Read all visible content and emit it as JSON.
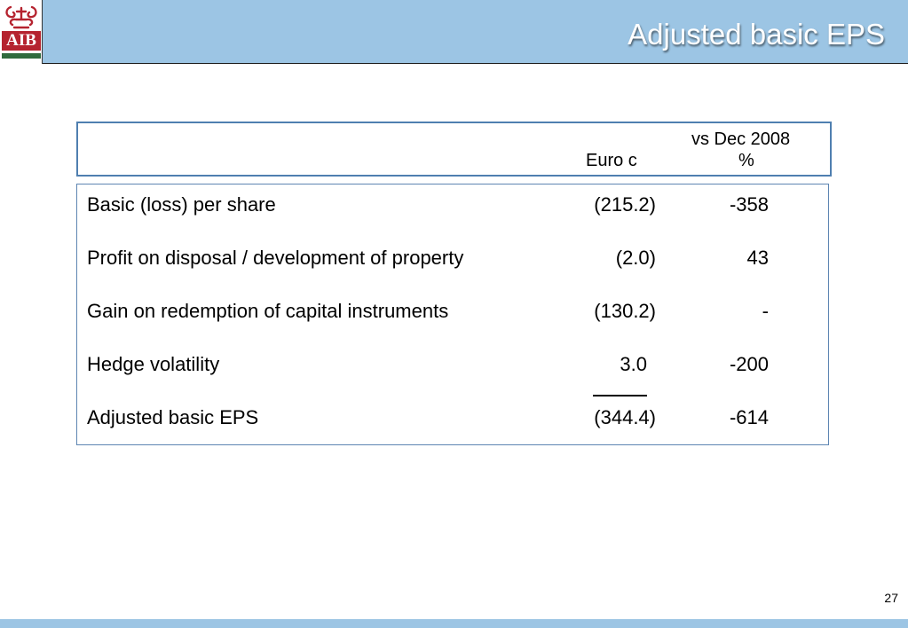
{
  "header": {
    "logo_text": "AIB",
    "title": "Adjusted basic EPS"
  },
  "column_headers": {
    "compare": "vs Dec 2008",
    "euro": "Euro c",
    "percent": "%"
  },
  "rows": [
    {
      "label": "Basic (loss) per share",
      "euro": "(215.2)",
      "pct": "-358"
    },
    {
      "label": "Profit on disposal / development of property",
      "euro": "(2.0)",
      "pct": "43"
    },
    {
      "label": "Gain on redemption of capital instruments",
      "euro": "(130.2)",
      "pct": "-"
    },
    {
      "label": "Hedge volatility",
      "euro": "3.0",
      "pct": "-200"
    },
    {
      "label": "Adjusted basic EPS",
      "euro": "(344.4)",
      "pct": "-614"
    }
  ],
  "footer": {
    "page_number": "27"
  },
  "colors": {
    "header_band": "#9cc5e4",
    "box_border": "#4f7fb0",
    "logo_red": "#b5232f",
    "logo_green": "#2f6b3d"
  }
}
